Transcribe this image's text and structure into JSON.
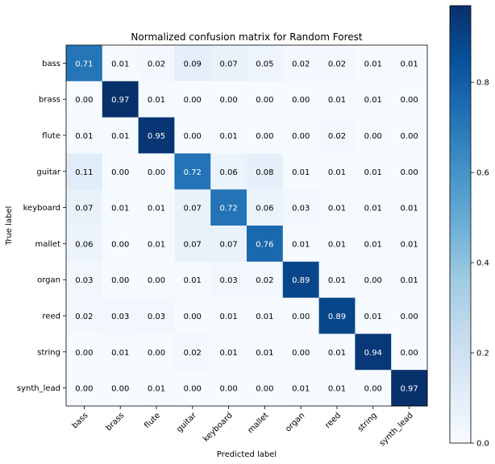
{
  "chart_data": {
    "type": "heatmap",
    "title": "Normalized confusion matrix for Random Forest",
    "xlabel": "Predicted label",
    "ylabel": "True label",
    "classes": [
      "bass",
      "brass",
      "flute",
      "guitar",
      "keyboard",
      "mallet",
      "organ",
      "reed",
      "string",
      "synth_lead"
    ],
    "matrix": [
      [
        0.71,
        0.01,
        0.02,
        0.09,
        0.07,
        0.05,
        0.02,
        0.02,
        0.01,
        0.01
      ],
      [
        0.0,
        0.97,
        0.01,
        0.0,
        0.0,
        0.0,
        0.0,
        0.01,
        0.01,
        0.0
      ],
      [
        0.01,
        0.01,
        0.95,
        0.0,
        0.01,
        0.0,
        0.0,
        0.02,
        0.0,
        0.0
      ],
      [
        0.11,
        0.0,
        0.0,
        0.72,
        0.06,
        0.08,
        0.01,
        0.01,
        0.01,
        0.0
      ],
      [
        0.07,
        0.01,
        0.01,
        0.07,
        0.72,
        0.06,
        0.03,
        0.01,
        0.01,
        0.01
      ],
      [
        0.06,
        0.0,
        0.01,
        0.07,
        0.07,
        0.76,
        0.01,
        0.01,
        0.01,
        0.01
      ],
      [
        0.03,
        0.0,
        0.0,
        0.01,
        0.03,
        0.02,
        0.89,
        0.01,
        0.0,
        0.01
      ],
      [
        0.02,
        0.03,
        0.03,
        0.0,
        0.01,
        0.01,
        0.0,
        0.89,
        0.01,
        0.0
      ],
      [
        0.0,
        0.01,
        0.0,
        0.02,
        0.01,
        0.01,
        0.0,
        0.01,
        0.94,
        0.0
      ],
      [
        0.0,
        0.0,
        0.01,
        0.0,
        0.0,
        0.0,
        0.01,
        0.01,
        0.0,
        0.97
      ]
    ],
    "colormap": "Blues",
    "colorbar": {
      "ticks": [
        "0.0",
        "0.2",
        "0.4",
        "0.6",
        "0.8"
      ],
      "range": [
        0.0,
        0.97
      ]
    },
    "text_color_light": "#ffffff",
    "text_color_dark": "#000000"
  }
}
